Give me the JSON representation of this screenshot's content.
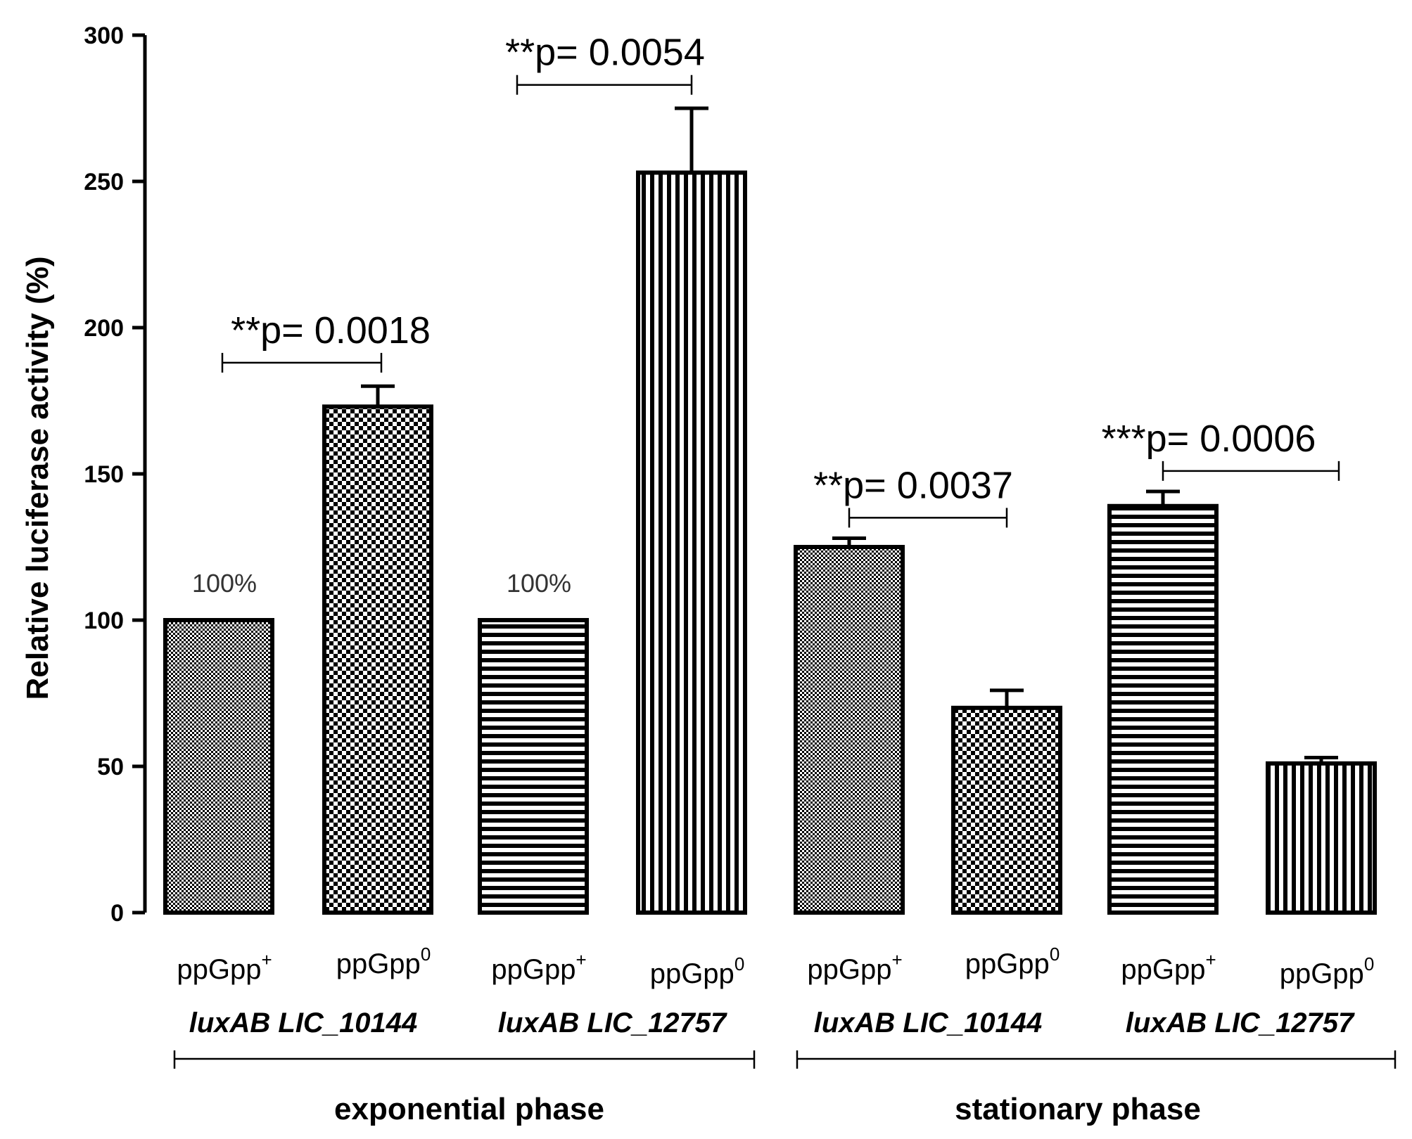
{
  "chart_data": {
    "type": "bar",
    "title": "",
    "xlabel": "",
    "ylabel": "Relative luciferase activity (%)",
    "ylim": [
      0,
      300
    ],
    "yticks": [
      "0",
      "50",
      "100",
      "150",
      "200",
      "250",
      "300"
    ],
    "categories": [
      "ppGpp+",
      "ppGpp0",
      "ppGpp+",
      "ppGpp0",
      "ppGpp+",
      "ppGpp0",
      "ppGpp+",
      "ppGpp0"
    ],
    "category_base": "ppGpp",
    "category_superscripts": [
      "+",
      "0",
      "+",
      "0",
      "+",
      "0",
      "+",
      "0"
    ],
    "values": [
      100,
      173,
      100,
      253,
      125,
      70,
      139,
      51
    ],
    "error_bars": [
      0,
      7,
      0,
      22,
      3,
      6,
      5,
      2
    ],
    "patterns": [
      "fine-check",
      "check",
      "horizontal",
      "vertical",
      "fine-check",
      "check",
      "horizontal",
      "vertical"
    ],
    "bar_labels": [
      "100%",
      "",
      "100%",
      "",
      "",
      "",
      "",
      ""
    ],
    "constructs": [
      "luxAB LIC_10144",
      "luxAB LIC_12757",
      "luxAB LIC_10144",
      "luxAB LIC_12757"
    ],
    "phases": [
      "exponential phase",
      "stationary phase"
    ],
    "significance": [
      {
        "label": "**p= 0.0018",
        "from": 0,
        "to": 1,
        "y": 188
      },
      {
        "label": "**p= 0.0054",
        "from": 2,
        "to": 3,
        "y": 283
      },
      {
        "label": "**p= 0.0037",
        "from": 4,
        "to": 5,
        "y": 135
      },
      {
        "label": "***p= 0.0006",
        "from": 6,
        "to": 7,
        "y": 151
      }
    ],
    "colors": {
      "bar_fill": "#ffffff",
      "bar_ink": "#000000",
      "axis": "#000000"
    }
  }
}
